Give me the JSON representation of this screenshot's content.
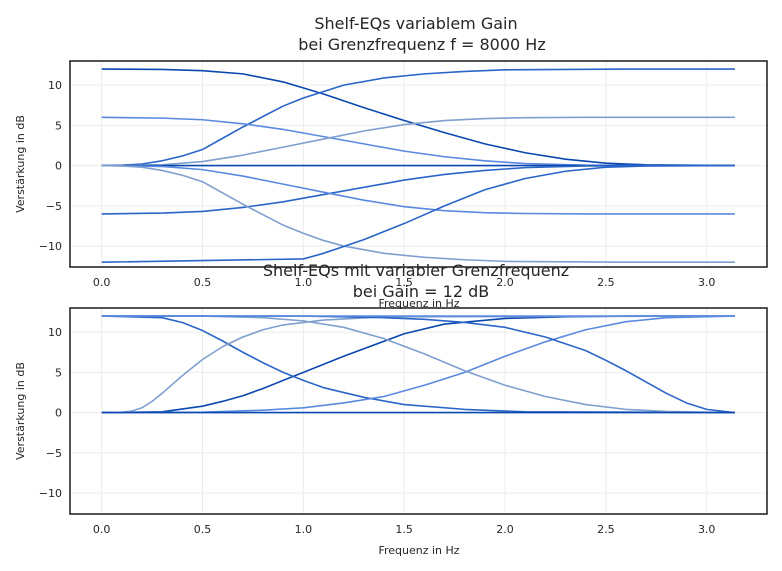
{
  "chart_data": [
    {
      "type": "line",
      "title": "Shelf-EQs variablem Gain",
      "subtitle": "bei Grenzfrequenz f = 8000 Hz",
      "xlabel": "Frequenz in Hz",
      "ylabel": "Verstärkung in dB",
      "xlim": [
        -0.157,
        3.299
      ],
      "ylim": [
        -12.6,
        13.0
      ],
      "xticks": [
        "0.0",
        "0.5",
        "1.0",
        "1.5",
        "2.0",
        "2.5",
        "3.0"
      ],
      "yticks": [
        "−10",
        "−5",
        "0",
        "5",
        "10"
      ],
      "grid": true,
      "colors": [
        "#0a48b0",
        "#2a65c8",
        "#5a8ae0",
        "#7f9fce"
      ],
      "series": [
        {
          "color": "#0a48b0",
          "x": [
            0,
            0.3,
            0.5,
            0.7,
            0.9,
            1.1,
            1.3,
            1.5,
            1.7,
            1.9,
            2.1,
            2.3,
            2.5,
            2.7,
            3.14
          ],
          "values": [
            12,
            11.95,
            11.8,
            11.4,
            10.4,
            8.9,
            7.2,
            5.6,
            4.1,
            2.7,
            1.6,
            0.8,
            0.3,
            0.1,
            0
          ]
        },
        {
          "color": "#2a65c8",
          "x": [
            0,
            0.1,
            0.2,
            0.3,
            0.4,
            0.5,
            0.6,
            0.7,
            0.8,
            0.9,
            1.0,
            1.2,
            1.4,
            1.6,
            1.8,
            2.0,
            2.3,
            2.6,
            3.14
          ],
          "values": [
            0,
            0.05,
            0.2,
            0.6,
            1.2,
            2.0,
            3.4,
            4.8,
            6.1,
            7.4,
            8.4,
            10.0,
            10.9,
            11.4,
            11.7,
            11.9,
            11.95,
            12,
            12
          ]
        },
        {
          "color": "#5a8ae0",
          "x": [
            0,
            0.3,
            0.5,
            0.7,
            0.9,
            1.1,
            1.3,
            1.5,
            1.7,
            1.9,
            2.1,
            2.4,
            3.14
          ],
          "values": [
            6,
            5.9,
            5.7,
            5.2,
            4.5,
            3.6,
            2.7,
            1.8,
            1.1,
            0.6,
            0.25,
            0.05,
            0
          ]
        },
        {
          "color": "#7f9fce",
          "x": [
            0,
            0.3,
            0.5,
            0.7,
            0.9,
            1.1,
            1.3,
            1.5,
            1.7,
            1.9,
            2.1,
            2.4,
            3.14
          ],
          "values": [
            0,
            0.1,
            0.5,
            1.3,
            2.3,
            3.3,
            4.3,
            5.1,
            5.6,
            5.85,
            5.95,
            6,
            6
          ]
        },
        {
          "color": "#0a48b0",
          "x": [
            0,
            3.14
          ],
          "values": [
            0,
            0
          ]
        },
        {
          "color": "#2a65c8",
          "x": [
            0,
            0.3,
            0.5,
            0.7,
            0.9,
            1.1,
            1.3,
            1.5,
            1.7,
            1.9,
            2.1,
            2.4,
            3.14
          ],
          "values": [
            -6,
            -5.9,
            -5.7,
            -5.2,
            -4.5,
            -3.6,
            -2.7,
            -1.8,
            -1.1,
            -0.6,
            -0.25,
            -0.05,
            0
          ]
        },
        {
          "color": "#5a8ae0",
          "x": [
            0,
            0.3,
            0.5,
            0.7,
            0.9,
            1.1,
            1.3,
            1.5,
            1.7,
            1.9,
            2.1,
            2.4,
            3.14
          ],
          "values": [
            0,
            -0.1,
            -0.5,
            -1.3,
            -2.3,
            -3.3,
            -4.3,
            -5.1,
            -5.6,
            -5.85,
            -5.95,
            -6,
            -6
          ]
        },
        {
          "color": "#7f9fce",
          "x": [
            0,
            0.1,
            0.2,
            0.3,
            0.4,
            0.5,
            0.6,
            0.7,
            0.8,
            0.9,
            1.0,
            1.1,
            1.2,
            1.4,
            1.6,
            1.8,
            2.0,
            2.3,
            2.6,
            3.14
          ],
          "values": [
            0,
            -0.05,
            -0.2,
            -0.6,
            -1.2,
            -2.0,
            -3.4,
            -4.8,
            -6.1,
            -7.4,
            -8.4,
            -9.3,
            -10.0,
            -10.9,
            -11.4,
            -11.7,
            -11.9,
            -11.95,
            -12,
            -12
          ]
        },
        {
          "color": "#2a65c8",
          "x": [
            0,
            1.0,
            1.1,
            1.3,
            1.5,
            1.7,
            1.9,
            2.1,
            2.3,
            2.5,
            2.7,
            3.14
          ],
          "values": [
            -12,
            -11.6,
            -10.9,
            -9.2,
            -7.2,
            -5.0,
            -3.0,
            -1.6,
            -0.7,
            -0.2,
            -0.05,
            0
          ]
        }
      ]
    },
    {
      "type": "line",
      "title": "Shelf-EQs mit variabler Grenzfrequenz",
      "subtitle": "bei Gain = 12 dB",
      "xlabel": "Frequenz in Hz",
      "ylabel": "Verstärkung in dB",
      "xlim": [
        -0.157,
        3.299
      ],
      "ylim": [
        -12.6,
        13.0
      ],
      "xticks": [
        "0.0",
        "0.5",
        "1.0",
        "1.5",
        "2.0",
        "2.5",
        "3.0"
      ],
      "yticks": [
        "−10",
        "−5",
        "0",
        "5",
        "10"
      ],
      "grid": true,
      "colors": [
        "#0a48b0",
        "#2a65c8",
        "#5a8ae0",
        "#7f9fce"
      ],
      "series": [
        {
          "color": "#0a48b0",
          "x": [
            0,
            0.3,
            0.5,
            0.6,
            0.7,
            0.8,
            0.9,
            1.0,
            1.2,
            1.5,
            1.7,
            2.0,
            2.3,
            2.6,
            3.14
          ],
          "values": [
            0,
            0.1,
            0.8,
            1.4,
            2.1,
            3.0,
            4.0,
            5.0,
            7.0,
            9.8,
            11.0,
            11.7,
            11.9,
            12,
            12
          ]
        },
        {
          "color": "#2a65c8",
          "x": [
            0,
            0.3,
            0.4,
            0.5,
            0.6,
            0.7,
            0.8,
            0.9,
            1.0,
            1.1,
            1.3,
            1.5,
            1.8,
            2.1,
            3.14
          ],
          "values": [
            12,
            11.8,
            11.2,
            10.2,
            8.9,
            7.5,
            6.2,
            5.0,
            4.0,
            3.1,
            1.9,
            1.0,
            0.4,
            0.1,
            0
          ]
        },
        {
          "color": "#5a8ae0",
          "x": [
            0,
            0.5,
            0.8,
            1.0,
            1.2,
            1.4,
            1.6,
            1.8,
            2.0,
            2.2,
            2.4,
            2.6,
            2.8,
            3.14
          ],
          "values": [
            0,
            0.05,
            0.3,
            0.6,
            1.2,
            2.0,
            3.4,
            5.0,
            7.0,
            8.8,
            10.3,
            11.3,
            11.8,
            12
          ]
        },
        {
          "color": "#7f9fce",
          "x": [
            0,
            0.1,
            0.15,
            0.2,
            0.25,
            0.3,
            0.35,
            0.4,
            0.5,
            0.6,
            0.7,
            0.8,
            0.9,
            1.1,
            1.4,
            3.14
          ],
          "values": [
            0,
            0.05,
            0.2,
            0.6,
            1.4,
            2.4,
            3.5,
            4.6,
            6.6,
            8.2,
            9.4,
            10.3,
            10.9,
            11.5,
            11.9,
            12
          ]
        },
        {
          "color": "#7f9fce",
          "x": [
            0,
            0.5,
            0.8,
            1.0,
            1.2,
            1.4,
            1.6,
            1.8,
            2.0,
            2.2,
            2.4,
            2.6,
            2.8,
            3.0,
            3.14
          ],
          "values": [
            12,
            12,
            11.8,
            11.4,
            10.6,
            9.2,
            7.3,
            5.2,
            3.4,
            2.0,
            1.0,
            0.4,
            0.15,
            0.05,
            0
          ]
        },
        {
          "color": "#2a65c8",
          "x": [
            0,
            1.0,
            1.2,
            1.4,
            1.6,
            1.8,
            2.0,
            2.2,
            2.4,
            2.5,
            2.6,
            2.7,
            2.8,
            2.9,
            3.0,
            3.14
          ],
          "values": [
            12,
            12,
            11.9,
            11.8,
            11.6,
            11.2,
            10.6,
            9.4,
            7.7,
            6.5,
            5.2,
            3.8,
            2.4,
            1.2,
            0.4,
            0
          ]
        },
        {
          "color": "#5a8ae0",
          "x": [
            0,
            3.14
          ],
          "values": [
            12,
            12
          ]
        },
        {
          "color": "#0a48b0",
          "x": [
            0,
            3.14
          ],
          "values": [
            0,
            0
          ]
        }
      ]
    }
  ]
}
